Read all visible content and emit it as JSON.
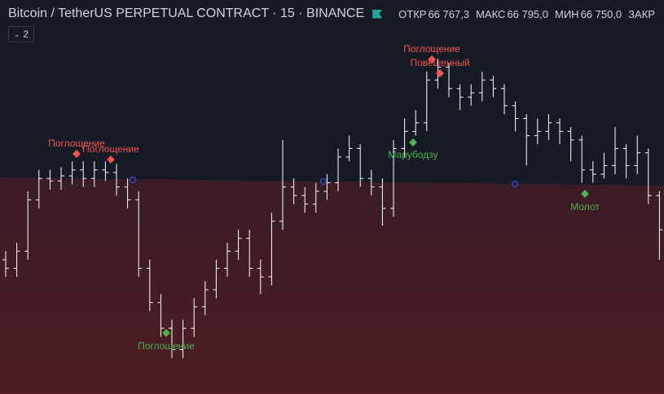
{
  "header": {
    "symbol": "Bitcoin / TetherUS PERPETUAL CONTRACT · 15 · BINANCE",
    "ohlc": [
      {
        "label": "ОТКР",
        "value": "66 767,3"
      },
      {
        "label": "МАКС",
        "value": "66 795,0"
      },
      {
        "label": "МИН",
        "value": "66 750,0"
      },
      {
        "label": "ЗАКР"
      }
    ],
    "indicator_count": "2"
  },
  "chart_data": {
    "type": "ohlc",
    "color": "#ffffff",
    "bars": [
      [
        190,
        200,
        170,
        180
      ],
      [
        180,
        210,
        170,
        200
      ],
      [
        200,
        270,
        190,
        260
      ],
      [
        260,
        295,
        250,
        285
      ],
      [
        285,
        295,
        272,
        282
      ],
      [
        282,
        298,
        272,
        288
      ],
      [
        288,
        305,
        278,
        295
      ],
      [
        295,
        305,
        275,
        285
      ],
      [
        285,
        305,
        275,
        295
      ],
      [
        295,
        305,
        282,
        292
      ],
      [
        292,
        302,
        265,
        275
      ],
      [
        275,
        285,
        250,
        260
      ],
      [
        260,
        270,
        170,
        180
      ],
      [
        180,
        190,
        130,
        140
      ],
      [
        140,
        150,
        100,
        110
      ],
      [
        110,
        120,
        75,
        85
      ],
      [
        85,
        120,
        75,
        110
      ],
      [
        110,
        145,
        100,
        135
      ],
      [
        135,
        165,
        125,
        155
      ],
      [
        155,
        190,
        145,
        180
      ],
      [
        180,
        210,
        170,
        200
      ],
      [
        200,
        225,
        190,
        215
      ],
      [
        215,
        225,
        170,
        180
      ],
      [
        180,
        190,
        150,
        170
      ],
      [
        170,
        245,
        160,
        235
      ],
      [
        235,
        330,
        225,
        275
      ],
      [
        275,
        285,
        255,
        265
      ],
      [
        265,
        275,
        245,
        255
      ],
      [
        255,
        280,
        245,
        270
      ],
      [
        270,
        290,
        260,
        280
      ],
      [
        280,
        320,
        270,
        310
      ],
      [
        310,
        335,
        305,
        320
      ],
      [
        320,
        325,
        275,
        285
      ],
      [
        285,
        295,
        265,
        275
      ],
      [
        275,
        285,
        230,
        250
      ],
      [
        250,
        330,
        240,
        320
      ],
      [
        320,
        355,
        310,
        340
      ],
      [
        340,
        365,
        335,
        350
      ],
      [
        350,
        410,
        340,
        400
      ],
      [
        400,
        425,
        390,
        415
      ],
      [
        415,
        420,
        380,
        390
      ],
      [
        390,
        395,
        365,
        380
      ],
      [
        380,
        395,
        370,
        385
      ],
      [
        385,
        410,
        375,
        400
      ],
      [
        400,
        405,
        380,
        390
      ],
      [
        390,
        395,
        360,
        370
      ],
      [
        370,
        375,
        340,
        355
      ],
      [
        355,
        360,
        300,
        335
      ],
      [
        335,
        355,
        325,
        340
      ],
      [
        340,
        360,
        330,
        350
      ],
      [
        350,
        355,
        325,
        340
      ],
      [
        340,
        345,
        305,
        330
      ],
      [
        330,
        335,
        280,
        295
      ],
      [
        295,
        305,
        280,
        290
      ],
      [
        290,
        315,
        285,
        300
      ],
      [
        300,
        345,
        290,
        320
      ],
      [
        320,
        325,
        285,
        300
      ],
      [
        300,
        335,
        290,
        315
      ],
      [
        315,
        320,
        255,
        265
      ],
      [
        265,
        270,
        190,
        225
      ]
    ],
    "annotations": [
      {
        "text": "Поглощение",
        "color": "#f05350"
      },
      {
        "text": "Поглощение",
        "color": "#f05350"
      },
      {
        "text": "Поглощение",
        "color": "#4caf50"
      },
      {
        "text": "Поглощение",
        "color": "#f05350"
      },
      {
        "text": "Повешенный",
        "color": "#f05350"
      },
      {
        "text": "Марубодзу",
        "color": "#4caf50"
      },
      {
        "text": "Молот",
        "color": "#4caf50"
      }
    ]
  }
}
